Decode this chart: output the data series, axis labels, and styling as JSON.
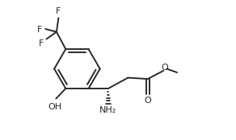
{
  "bg_color": "#ffffff",
  "line_color": "#2a2a2a",
  "bond_lw": 1.4,
  "font_size": 8.0,
  "font_color": "#2a2a2a",
  "figsize": [
    2.92,
    1.74
  ],
  "dpi": 100,
  "xlim": [
    0,
    9.5
  ],
  "ylim": [
    0,
    5.8
  ]
}
